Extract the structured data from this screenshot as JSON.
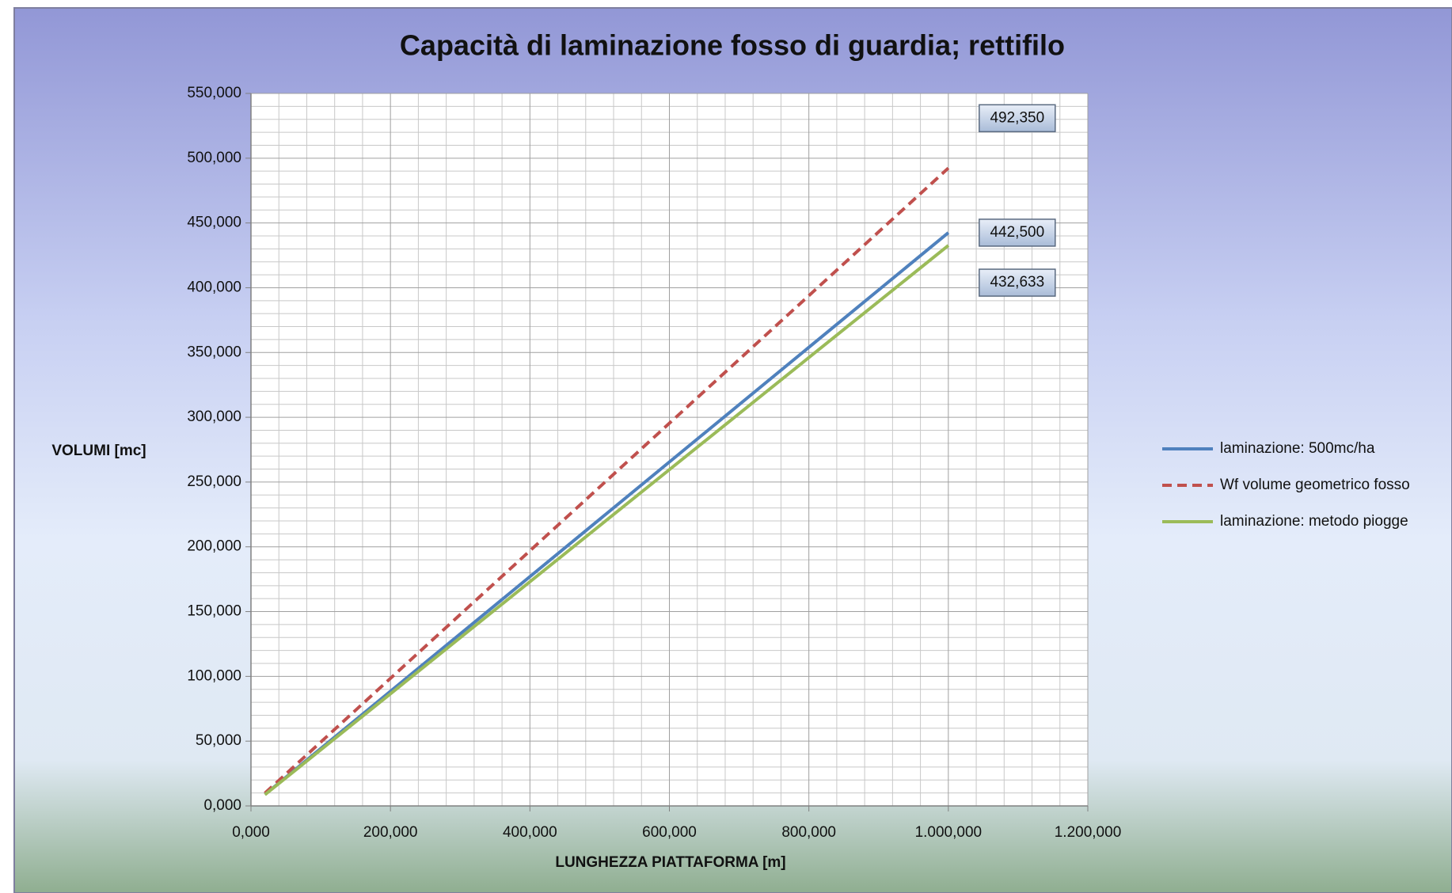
{
  "chart_data": {
    "type": "line",
    "title": "Capacità di laminazione fosso di guardia; rettifilo",
    "x_label": "LUNGHEZZA PIATTAFORMA  [m]",
    "y_label": "VOLUMI [mc]",
    "x": [
      20,
      1000
    ],
    "series": [
      {
        "name": "laminazione: 500mc/ha",
        "color": "#4f81bd",
        "dash": "solid",
        "values": [
          8.85,
          442.5
        ],
        "value_labels": [
          null,
          "442,500"
        ]
      },
      {
        "name": "Wf volume geometrico fosso",
        "color": "#c0504d",
        "dash": "dashed",
        "values": [
          9.85,
          492.35
        ],
        "value_labels": [
          null,
          "492,350"
        ]
      },
      {
        "name": "laminazione: metodo piogge",
        "color": "#9bbb59",
        "dash": "solid",
        "values": [
          8.65,
          432.633
        ],
        "value_labels": [
          null,
          "432,633"
        ]
      }
    ],
    "xlim": [
      0,
      1200
    ],
    "xticks": [
      {
        "value": 0,
        "label": "0,000"
      },
      {
        "value": 200,
        "label": "200,000"
      },
      {
        "value": 400,
        "label": "400,000"
      },
      {
        "value": 600,
        "label": "600,000"
      },
      {
        "value": 800,
        "label": "800,000"
      },
      {
        "value": 1000,
        "label": "1.000,000"
      },
      {
        "value": 1200,
        "label": "1.200,000"
      }
    ],
    "ylim": [
      0,
      550
    ],
    "yticks": [
      {
        "value": 0,
        "label": "0,000"
      },
      {
        "value": 50,
        "label": "50,000"
      },
      {
        "value": 100,
        "label": "100,000"
      },
      {
        "value": 150,
        "label": "150,000"
      },
      {
        "value": 200,
        "label": "200,000"
      },
      {
        "value": 250,
        "label": "250,000"
      },
      {
        "value": 300,
        "label": "300,000"
      },
      {
        "value": 350,
        "label": "350,000"
      },
      {
        "value": 400,
        "label": "400,000"
      },
      {
        "value": 450,
        "label": "450,000"
      },
      {
        "value": 500,
        "label": "500,000"
      },
      {
        "value": 550,
        "label": "550,000"
      }
    ],
    "grid": true,
    "legend": "right"
  }
}
